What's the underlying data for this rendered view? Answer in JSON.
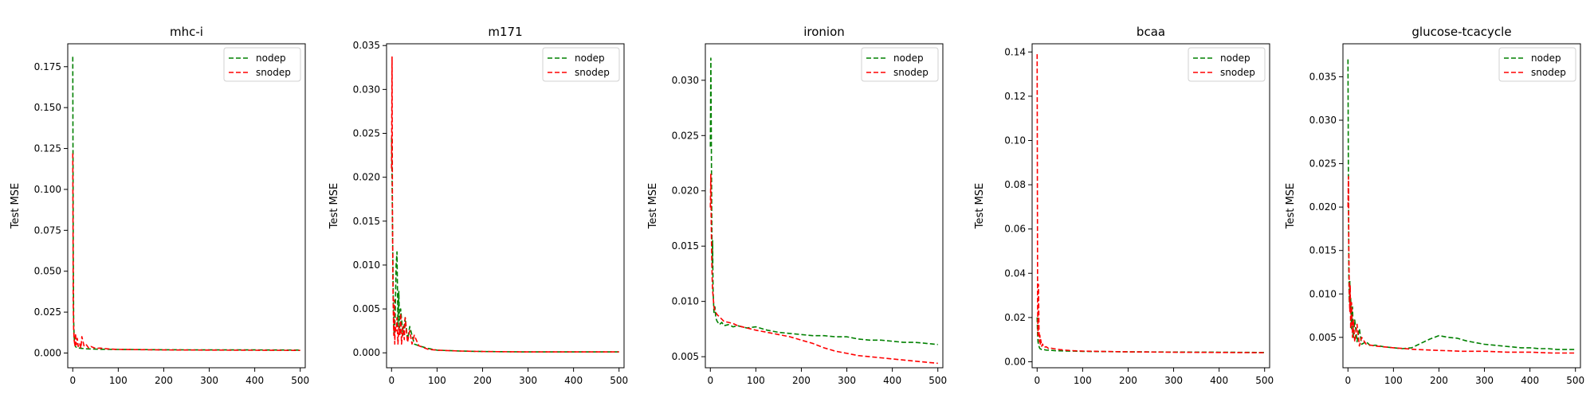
{
  "chart_data": [
    {
      "type": "line",
      "title": "mhc-i",
      "xlabel": "",
      "ylabel": "Test MSE",
      "xlim": [
        -11,
        511
      ],
      "ylim": [
        -0.009,
        0.189
      ],
      "xticks": [
        0,
        100,
        200,
        300,
        400,
        500
      ],
      "yticks": [
        0.0,
        0.025,
        0.05,
        0.075,
        0.1,
        0.125,
        0.15,
        0.175
      ],
      "ytick_labels": [
        "0.000",
        "0.025",
        "0.050",
        "0.075",
        "0.100",
        "0.125",
        "0.150",
        "0.175"
      ],
      "legend": "top-right",
      "grid": false,
      "series": [
        {
          "name": "nodep",
          "color": "#008000",
          "x": [
            0,
            1,
            2,
            3,
            4,
            5,
            6,
            8,
            10,
            15,
            20,
            30,
            40,
            60,
            100,
            200,
            300,
            400,
            500
          ],
          "y": [
            0.181,
            0.06,
            0.02,
            0.01,
            0.006,
            0.005,
            0.004,
            0.0035,
            0.003,
            0.003,
            0.0028,
            0.0026,
            0.0025,
            0.0023,
            0.0022,
            0.002,
            0.0019,
            0.0019,
            0.0018
          ]
        },
        {
          "name": "snodep",
          "color": "#ff0000",
          "x": [
            0,
            1,
            2,
            3,
            4,
            5,
            6,
            8,
            10,
            12,
            15,
            18,
            20,
            25,
            30,
            35,
            40,
            50,
            60,
            80,
            100,
            200,
            300,
            400,
            500
          ],
          "y": [
            0.122,
            0.03,
            0.015,
            0.008,
            0.006,
            0.004,
            0.012,
            0.005,
            0.009,
            0.004,
            0.006,
            0.003,
            0.01,
            0.004,
            0.005,
            0.003,
            0.004,
            0.0028,
            0.003,
            0.0025,
            0.0022,
            0.0019,
            0.0018,
            0.0017,
            0.0016
          ]
        }
      ]
    },
    {
      "type": "line",
      "title": "m171",
      "xlabel": "",
      "ylabel": "Test MSE",
      "xlim": [
        -11,
        511
      ],
      "ylim": [
        -0.0017,
        0.0352
      ],
      "xticks": [
        0,
        100,
        200,
        300,
        400,
        500
      ],
      "yticks": [
        0.0,
        0.005,
        0.01,
        0.015,
        0.02,
        0.025,
        0.03,
        0.035
      ],
      "ytick_labels": [
        "0.000",
        "0.005",
        "0.010",
        "0.015",
        "0.020",
        "0.025",
        "0.030",
        "0.035"
      ],
      "legend": "top-right",
      "grid": false,
      "series": [
        {
          "name": "nodep",
          "color": "#008000",
          "x": [
            0,
            1,
            2,
            3,
            4,
            5,
            6,
            8,
            10,
            12,
            14,
            16,
            18,
            20,
            25,
            30,
            35,
            40,
            50,
            60,
            80,
            100,
            150,
            200,
            300,
            400,
            500
          ],
          "y": [
            0.0245,
            0.02,
            0.015,
            0.01,
            0.005,
            0.003,
            0.002,
            0.004,
            0.01,
            0.0115,
            0.003,
            0.007,
            0.002,
            0.005,
            0.002,
            0.004,
            0.0015,
            0.003,
            0.001,
            0.0008,
            0.0005,
            0.0003,
            0.0002,
            0.00015,
            0.0001,
            0.0001,
            0.0001
          ]
        },
        {
          "name": "snodep",
          "color": "#ff0000",
          "x": [
            0,
            1,
            2,
            3,
            4,
            5,
            6,
            7,
            8,
            10,
            12,
            14,
            16,
            18,
            20,
            22,
            25,
            28,
            30,
            35,
            40,
            45,
            50,
            60,
            70,
            80,
            100,
            150,
            200,
            300,
            400,
            500
          ],
          "y": [
            0.021,
            0.0337,
            0.016,
            0.008,
            0.004,
            0.002,
            0.006,
            0.001,
            0.003,
            0.0025,
            0.004,
            0.001,
            0.003,
            0.002,
            0.0045,
            0.001,
            0.003,
            0.0015,
            0.004,
            0.0012,
            0.0025,
            0.001,
            0.002,
            0.0008,
            0.0006,
            0.0004,
            0.0003,
            0.0002,
            0.00015,
            0.0001,
            0.0001,
            0.0001
          ]
        }
      ]
    },
    {
      "type": "line",
      "title": "ironion",
      "xlabel": "",
      "ylabel": "Test MSE",
      "xlim": [
        -11,
        511
      ],
      "ylim": [
        0.004,
        0.0333
      ],
      "xticks": [
        0,
        100,
        200,
        300,
        400,
        500
      ],
      "yticks": [
        0.005,
        0.01,
        0.015,
        0.02,
        0.025,
        0.03
      ],
      "ytick_labels": [
        "0.005",
        "0.010",
        "0.015",
        "0.020",
        "0.025",
        "0.030"
      ],
      "legend": "top-right",
      "grid": false,
      "series": [
        {
          "name": "nodep",
          "color": "#008000",
          "x": [
            0,
            1,
            2,
            3,
            4,
            5,
            6,
            8,
            10,
            12,
            15,
            20,
            25,
            30,
            40,
            50,
            60,
            80,
            100,
            125,
            150,
            175,
            200,
            225,
            250,
            275,
            300,
            325,
            350,
            375,
            400,
            425,
            450,
            475,
            500
          ],
          "y": [
            0.024,
            0.032,
            0.026,
            0.018,
            0.013,
            0.0155,
            0.011,
            0.009,
            0.0095,
            0.0085,
            0.0082,
            0.0079,
            0.0081,
            0.0078,
            0.0079,
            0.0077,
            0.0078,
            0.0076,
            0.0077,
            0.0074,
            0.0072,
            0.0071,
            0.007,
            0.0069,
            0.0069,
            0.0068,
            0.0068,
            0.0066,
            0.0065,
            0.0065,
            0.0064,
            0.0063,
            0.0063,
            0.0062,
            0.0061
          ]
        },
        {
          "name": "snodep",
          "color": "#ff0000",
          "x": [
            0,
            1,
            2,
            3,
            4,
            5,
            6,
            8,
            10,
            12,
            15,
            20,
            25,
            30,
            40,
            50,
            60,
            80,
            100,
            125,
            150,
            175,
            200,
            225,
            250,
            275,
            300,
            325,
            350,
            375,
            400,
            425,
            450,
            475,
            500
          ],
          "y": [
            0.0185,
            0.0215,
            0.017,
            0.014,
            0.012,
            0.011,
            0.0105,
            0.0095,
            0.0092,
            0.009,
            0.0088,
            0.0086,
            0.0084,
            0.0082,
            0.0081,
            0.008,
            0.0078,
            0.0076,
            0.0074,
            0.0072,
            0.007,
            0.0068,
            0.0065,
            0.0062,
            0.0058,
            0.0055,
            0.0053,
            0.0051,
            0.005,
            0.0049,
            0.0048,
            0.0047,
            0.0046,
            0.0045,
            0.0044
          ]
        }
      ]
    },
    {
      "type": "line",
      "title": "bcaa",
      "xlabel": "",
      "ylabel": "Test MSE",
      "xlim": [
        -11,
        511
      ],
      "ylim": [
        -0.0027,
        0.1437
      ],
      "xticks": [
        0,
        100,
        200,
        300,
        400,
        500
      ],
      "yticks": [
        0.0,
        0.02,
        0.04,
        0.06,
        0.08,
        0.1,
        0.12,
        0.14
      ],
      "ytick_labels": [
        "0.00",
        "0.02",
        "0.04",
        "0.06",
        "0.08",
        "0.10",
        "0.12",
        "0.14"
      ],
      "legend": "top-right",
      "grid": false,
      "series": [
        {
          "name": "nodep",
          "color": "#008000",
          "x": [
            0,
            1,
            2,
            3,
            4,
            5,
            6,
            8,
            10,
            15,
            20,
            30,
            40,
            60,
            80,
            100,
            200,
            300,
            400,
            500
          ],
          "y": [
            0.02,
            0.012,
            0.009,
            0.008,
            0.007,
            0.0065,
            0.006,
            0.0058,
            0.0055,
            0.0055,
            0.0053,
            0.0052,
            0.005,
            0.0049,
            0.0048,
            0.0047,
            0.0045,
            0.0044,
            0.0043,
            0.0042
          ]
        },
        {
          "name": "snodep",
          "color": "#ff0000",
          "x": [
            0,
            1,
            2,
            3,
            4,
            5,
            6,
            7,
            8,
            10,
            12,
            15,
            20,
            25,
            30,
            40,
            50,
            60,
            80,
            100,
            200,
            300,
            400,
            500
          ],
          "y": [
            0.139,
            0.025,
            0.012,
            0.035,
            0.015,
            0.009,
            0.012,
            0.008,
            0.01,
            0.007,
            0.008,
            0.0065,
            0.0068,
            0.006,
            0.0062,
            0.0058,
            0.0055,
            0.0053,
            0.005,
            0.0048,
            0.0045,
            0.0043,
            0.0042,
            0.0041
          ]
        }
      ]
    },
    {
      "type": "line",
      "title": "glucose-tcacycle",
      "xlabel": "",
      "ylabel": "Test MSE",
      "xlim": [
        -11,
        511
      ],
      "ylim": [
        0.0015,
        0.0388
      ],
      "xticks": [
        0,
        100,
        200,
        300,
        400,
        500
      ],
      "yticks": [
        0.005,
        0.01,
        0.015,
        0.02,
        0.025,
        0.03,
        0.035
      ],
      "ytick_labels": [
        "0.005",
        "0.010",
        "0.015",
        "0.020",
        "0.025",
        "0.030",
        "0.035"
      ],
      "legend": "top-right",
      "grid": false,
      "series": [
        {
          "name": "nodep",
          "color": "#008000",
          "x": [
            0,
            1,
            2,
            3,
            4,
            5,
            6,
            8,
            10,
            12,
            15,
            20,
            25,
            30,
            40,
            50,
            60,
            80,
            100,
            120,
            140,
            160,
            180,
            200,
            220,
            240,
            260,
            280,
            300,
            320,
            340,
            360,
            380,
            400,
            420,
            440,
            460,
            480,
            500
          ],
          "y": [
            0.037,
            0.022,
            0.012,
            0.009,
            0.0115,
            0.008,
            0.0095,
            0.006,
            0.0085,
            0.005,
            0.007,
            0.0045,
            0.006,
            0.0042,
            0.0045,
            0.004,
            0.0041,
            0.0039,
            0.0038,
            0.0037,
            0.0038,
            0.0043,
            0.0048,
            0.0052,
            0.005,
            0.0049,
            0.0046,
            0.0044,
            0.0042,
            0.0041,
            0.004,
            0.0039,
            0.0038,
            0.0038,
            0.0037,
            0.0037,
            0.0036,
            0.0036,
            0.0036
          ]
        },
        {
          "name": "snodep",
          "color": "#ff0000",
          "x": [
            0,
            1,
            2,
            3,
            4,
            5,
            6,
            8,
            10,
            12,
            15,
            20,
            25,
            30,
            40,
            50,
            60,
            80,
            100,
            150,
            200,
            250,
            300,
            350,
            400,
            450,
            500
          ],
          "y": [
            0.02,
            0.0235,
            0.015,
            0.01,
            0.008,
            0.011,
            0.006,
            0.009,
            0.005,
            0.007,
            0.0045,
            0.0065,
            0.004,
            0.005,
            0.0042,
            0.0041,
            0.004,
            0.0039,
            0.0038,
            0.0036,
            0.0035,
            0.0034,
            0.0034,
            0.0033,
            0.0033,
            0.0032,
            0.0032
          ]
        }
      ]
    }
  ]
}
